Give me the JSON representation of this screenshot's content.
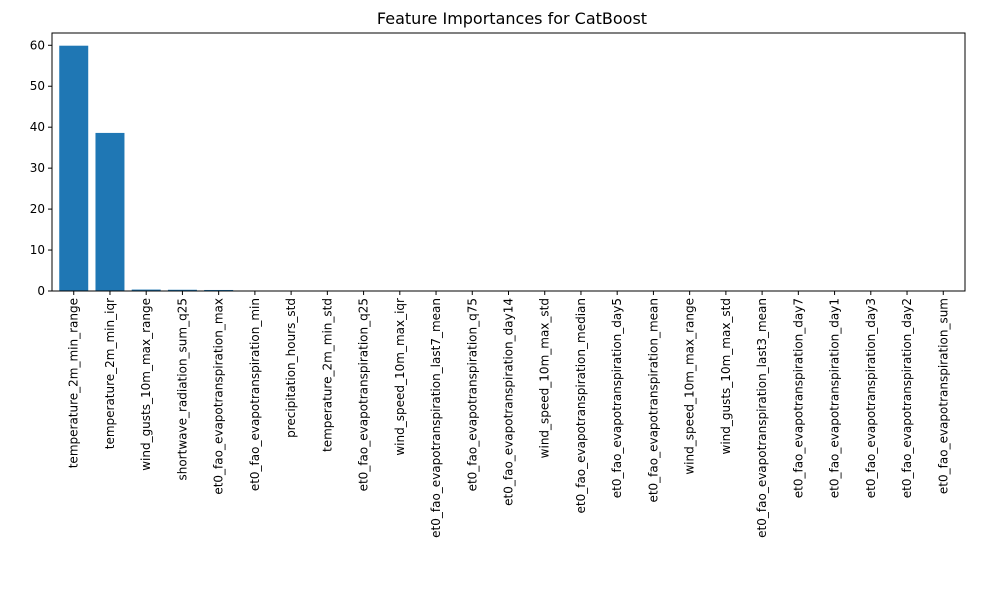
{
  "chart_data": {
    "type": "bar",
    "title": "Feature Importances for CatBoost",
    "xlabel": "",
    "ylabel": "",
    "ylim": [
      0,
      63
    ],
    "yticks": [
      0,
      10,
      20,
      30,
      40,
      50,
      60
    ],
    "grid": false,
    "bar_color": "#1f77b4",
    "categories": [
      "temperature_2m_min_range",
      "temperature_2m_min_iqr",
      "wind_gusts_10m_max_range",
      "shortwave_radiation_sum_q25",
      "et0_fao_evapotranspiration_max",
      "et0_fao_evapotranspiration_min",
      "precipitation_hours_std",
      "temperature_2m_min_std",
      "et0_fao_evapotranspiration_q25",
      "wind_speed_10m_max_iqr",
      "et0_fao_evapotranspiration_last7_mean",
      "et0_fao_evapotranspiration_q75",
      "et0_fao_evapotranspiration_day14",
      "wind_speed_10m_max_std",
      "et0_fao_evapotranspiration_median",
      "et0_fao_evapotranspiration_day5",
      "et0_fao_evapotranspiration_mean",
      "wind_speed_10m_max_range",
      "wind_gusts_10m_max_std",
      "et0_fao_evapotranspiration_last3_mean",
      "et0_fao_evapotranspiration_day7",
      "et0_fao_evapotranspiration_day1",
      "et0_fao_evapotranspiration_day3",
      "et0_fao_evapotranspiration_day2",
      "et0_fao_evapotranspiration_sum"
    ],
    "values": [
      59.9,
      38.6,
      0.35,
      0.3,
      0.25,
      0.05,
      0.03,
      0.03,
      0.02,
      0.02,
      0.02,
      0.02,
      0.01,
      0.01,
      0.01,
      0.01,
      0.01,
      0.01,
      0.01,
      0.01,
      0.01,
      0.01,
      0.01,
      0.01,
      0.01
    ]
  }
}
